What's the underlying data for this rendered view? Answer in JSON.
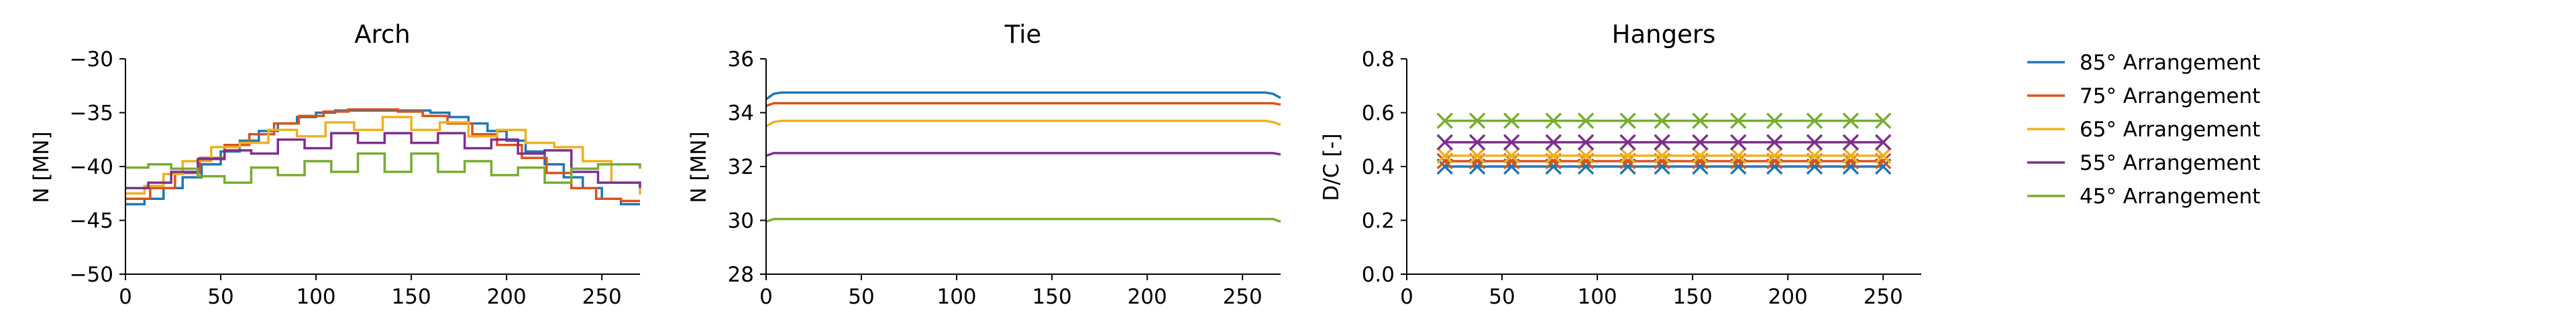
{
  "chart_data": [
    {
      "type": "line",
      "title": "Arch",
      "xlabel": "",
      "ylabel": "N [MN]",
      "xlim": [
        0,
        270
      ],
      "ylim": [
        -50,
        -30
      ],
      "xticks": [
        0,
        50,
        100,
        150,
        200,
        250
      ],
      "yticks": [
        -30,
        -35,
        -40,
        -45,
        -50
      ],
      "xtick_labels": [
        "0",
        "50",
        "100",
        "150",
        "200",
        "250"
      ],
      "ytick_labels": [
        "−30",
        "−35",
        "−40",
        "−45",
        "−50"
      ],
      "grid": false,
      "series": [
        {
          "name": "85° Arrangement",
          "color": "#1f77b4",
          "step": "post",
          "x": [
            0,
            10,
            20,
            30,
            40,
            50,
            60,
            70,
            80,
            90,
            100,
            110,
            120,
            130,
            140,
            150,
            160,
            170,
            180,
            190,
            200,
            210,
            220,
            230,
            240,
            250,
            260,
            270
          ],
          "y": [
            -43.5,
            -43.0,
            -42.0,
            -41.0,
            -39.8,
            -38.6,
            -37.6,
            -36.7,
            -36.0,
            -35.4,
            -35.0,
            -34.8,
            -34.8,
            -34.8,
            -34.8,
            -34.8,
            -35.0,
            -35.4,
            -36.0,
            -36.7,
            -37.6,
            -38.6,
            -39.8,
            -41.0,
            -42.0,
            -43.0,
            -43.5,
            -43.5
          ]
        },
        {
          "name": "75° Arrangement",
          "color": "#d95319",
          "step": "post",
          "x": [
            0,
            13,
            26,
            39,
            52,
            65,
            78,
            91,
            104,
            117,
            130,
            143,
            156,
            169,
            182,
            195,
            208,
            221,
            234,
            247,
            260,
            270
          ],
          "y": [
            -43.0,
            -42.0,
            -40.6,
            -39.2,
            -38.0,
            -37.0,
            -36.0,
            -35.3,
            -34.9,
            -34.7,
            -34.7,
            -34.9,
            -35.3,
            -36.0,
            -37.0,
            -38.0,
            -39.2,
            -40.6,
            -42.0,
            -43.0,
            -43.2,
            -43.2
          ]
        },
        {
          "name": "65° Arrangement",
          "color": "#edb120",
          "step": "post",
          "x": [
            0,
            10,
            20,
            30,
            45,
            60,
            75,
            90,
            105,
            120,
            135,
            150,
            165,
            180,
            195,
            210,
            225,
            240,
            255,
            270
          ],
          "y": [
            -42.5,
            -41.8,
            -40.7,
            -39.5,
            -38.2,
            -37.8,
            -36.6,
            -37.2,
            -35.9,
            -36.6,
            -35.4,
            -36.6,
            -35.9,
            -37.2,
            -36.6,
            -37.8,
            -38.2,
            -39.5,
            -41.5,
            -42.6
          ]
        },
        {
          "name": "55° Arrangement",
          "color": "#7e2f8e",
          "step": "post",
          "x": [
            0,
            12,
            24,
            38,
            52,
            66,
            80,
            94,
            108,
            122,
            136,
            150,
            164,
            178,
            192,
            206,
            220,
            234,
            248,
            270
          ],
          "y": [
            -42.0,
            -41.5,
            -40.5,
            -39.3,
            -38.5,
            -38.8,
            -37.5,
            -38.3,
            -36.9,
            -37.8,
            -36.9,
            -37.8,
            -36.9,
            -38.3,
            -37.5,
            -38.8,
            -38.5,
            -40.5,
            -41.5,
            -42.0
          ]
        },
        {
          "name": "45° Arrangement",
          "color": "#77ac30",
          "step": "post",
          "x": [
            0,
            12,
            24,
            38,
            52,
            66,
            80,
            94,
            108,
            122,
            136,
            150,
            164,
            178,
            192,
            206,
            220,
            234,
            248,
            270
          ],
          "y": [
            -40.1,
            -39.8,
            -40.2,
            -40.9,
            -41.5,
            -40.1,
            -40.8,
            -39.5,
            -40.5,
            -38.8,
            -40.5,
            -38.8,
            -40.5,
            -39.5,
            -40.8,
            -40.1,
            -41.5,
            -40.2,
            -39.8,
            -40.2
          ]
        }
      ]
    },
    {
      "type": "line",
      "title": "Tie",
      "xlabel": "",
      "ylabel": "N [MN]",
      "xlim": [
        0,
        270
      ],
      "ylim": [
        28,
        36
      ],
      "xticks": [
        0,
        50,
        100,
        150,
        200,
        250
      ],
      "yticks": [
        28,
        30,
        32,
        34,
        36
      ],
      "xtick_labels": [
        "0",
        "50",
        "100",
        "150",
        "200",
        "250"
      ],
      "ytick_labels": [
        "28",
        "30",
        "32",
        "34",
        "36"
      ],
      "grid": false,
      "series": [
        {
          "name": "85° Arrangement",
          "color": "#1f77b4",
          "x": [
            0,
            4,
            8,
            262,
            266,
            270
          ],
          "y": [
            34.5,
            34.7,
            34.75,
            34.75,
            34.7,
            34.55
          ]
        },
        {
          "name": "75° Arrangement",
          "color": "#d95319",
          "x": [
            0,
            4,
            8,
            262,
            266,
            270
          ],
          "y": [
            34.25,
            34.35,
            34.35,
            34.35,
            34.35,
            34.3
          ]
        },
        {
          "name": "65° Arrangement",
          "color": "#edb120",
          "x": [
            0,
            4,
            8,
            262,
            266,
            270
          ],
          "y": [
            33.5,
            33.65,
            33.7,
            33.7,
            33.65,
            33.55
          ]
        },
        {
          "name": "55° Arrangement",
          "color": "#7e2f8e",
          "x": [
            0,
            4,
            8,
            262,
            266,
            270
          ],
          "y": [
            32.4,
            32.5,
            32.5,
            32.5,
            32.5,
            32.45
          ]
        },
        {
          "name": "45° Arrangement",
          "color": "#77ac30",
          "x": [
            0,
            4,
            8,
            262,
            266,
            270
          ],
          "y": [
            29.95,
            30.05,
            30.05,
            30.05,
            30.05,
            29.95
          ]
        }
      ]
    },
    {
      "type": "line",
      "title": "Hangers",
      "xlabel": "",
      "ylabel": "D/C [-]",
      "xlim": [
        0,
        270
      ],
      "ylim": [
        0.0,
        0.8
      ],
      "xticks": [
        0,
        50,
        100,
        150,
        200,
        250
      ],
      "yticks": [
        0.0,
        0.2,
        0.4,
        0.6,
        0.8
      ],
      "xtick_labels": [
        "0",
        "50",
        "100",
        "150",
        "200",
        "250"
      ],
      "ytick_labels": [
        "0.0",
        "0.2",
        "0.4",
        "0.6",
        "0.8"
      ],
      "grid": false,
      "marker": "x",
      "series": [
        {
          "name": "85° Arrangement",
          "color": "#1f77b4",
          "x": [
            20,
            37,
            55,
            77,
            94,
            116,
            134,
            154,
            174,
            193,
            214,
            233,
            250
          ],
          "y": [
            0.4,
            0.4,
            0.4,
            0.4,
            0.4,
            0.4,
            0.4,
            0.4,
            0.4,
            0.4,
            0.4,
            0.4,
            0.4
          ]
        },
        {
          "name": "75° Arrangement",
          "color": "#d95319",
          "x": [
            20,
            37,
            55,
            77,
            94,
            116,
            134,
            154,
            174,
            193,
            214,
            233,
            250
          ],
          "y": [
            0.42,
            0.42,
            0.42,
            0.42,
            0.42,
            0.42,
            0.42,
            0.42,
            0.42,
            0.42,
            0.42,
            0.42,
            0.42
          ]
        },
        {
          "name": "65° Arrangement",
          "color": "#edb120",
          "x": [
            20,
            37,
            55,
            77,
            94,
            116,
            134,
            154,
            174,
            193,
            214,
            233,
            250
          ],
          "y": [
            0.44,
            0.44,
            0.44,
            0.44,
            0.44,
            0.44,
            0.44,
            0.44,
            0.44,
            0.44,
            0.44,
            0.44,
            0.44
          ]
        },
        {
          "name": "55° Arrangement",
          "color": "#7e2f8e",
          "x": [
            20,
            37,
            55,
            77,
            94,
            116,
            134,
            154,
            174,
            193,
            214,
            233,
            250
          ],
          "y": [
            0.49,
            0.49,
            0.49,
            0.49,
            0.49,
            0.49,
            0.49,
            0.49,
            0.49,
            0.49,
            0.49,
            0.49,
            0.49
          ]
        },
        {
          "name": "45° Arrangement",
          "color": "#77ac30",
          "x": [
            20,
            37,
            55,
            77,
            94,
            116,
            134,
            154,
            174,
            193,
            214,
            233,
            250
          ],
          "y": [
            0.57,
            0.57,
            0.57,
            0.57,
            0.57,
            0.57,
            0.57,
            0.57,
            0.57,
            0.57,
            0.57,
            0.57,
            0.57
          ]
        }
      ]
    }
  ],
  "legend": {
    "position": "right",
    "entries": [
      {
        "label": "85° Arrangement",
        "color": "#1f77b4"
      },
      {
        "label": "75° Arrangement",
        "color": "#d95319"
      },
      {
        "label": "65° Arrangement",
        "color": "#edb120"
      },
      {
        "label": "55° Arrangement",
        "color": "#7e2f8e"
      },
      {
        "label": "45° Arrangement",
        "color": "#77ac30"
      }
    ]
  }
}
